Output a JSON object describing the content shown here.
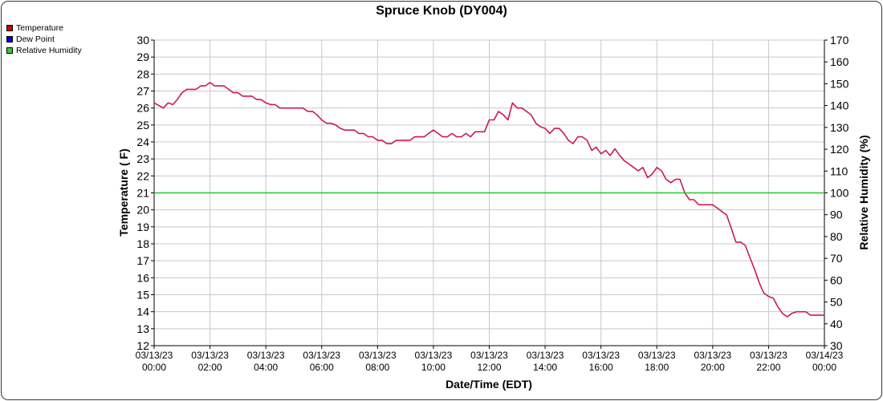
{
  "chart_data": {
    "type": "line",
    "title": "Spruce Knob (DY004)",
    "xlabel": "Date/Time (EDT)",
    "ylabel_left": "Temperature ( F)",
    "ylabel_right": "Relative Humidity (%)",
    "ylim_left": [
      12,
      30
    ],
    "ylim_right": [
      30,
      170
    ],
    "yticks_left": [
      "12",
      "13",
      "14",
      "15",
      "16",
      "17",
      "18",
      "19",
      "20",
      "21",
      "22",
      "23",
      "24",
      "25",
      "26",
      "27",
      "28",
      "29",
      "30"
    ],
    "yticks_right": [
      "30",
      "40",
      "50",
      "60",
      "70",
      "80",
      "90",
      "100",
      "110",
      "120",
      "130",
      "140",
      "150",
      "160",
      "170"
    ],
    "xlim_hours": [
      0,
      24
    ],
    "xticks": [
      {
        "date": "03/13/23",
        "time": "00:00"
      },
      {
        "date": "03/13/23",
        "time": "02:00"
      },
      {
        "date": "03/13/23",
        "time": "04:00"
      },
      {
        "date": "03/13/23",
        "time": "06:00"
      },
      {
        "date": "03/13/23",
        "time": "08:00"
      },
      {
        "date": "03/13/23",
        "time": "10:00"
      },
      {
        "date": "03/13/23",
        "time": "12:00"
      },
      {
        "date": "03/13/23",
        "time": "14:00"
      },
      {
        "date": "03/13/23",
        "time": "16:00"
      },
      {
        "date": "03/13/23",
        "time": "18:00"
      },
      {
        "date": "03/13/23",
        "time": "20:00"
      },
      {
        "date": "03/13/23",
        "time": "22:00"
      },
      {
        "date": "03/14/23",
        "time": "00:00"
      }
    ],
    "grid": true,
    "legend_position": "top-left",
    "series": [
      {
        "name": "Temperature",
        "axis": "left",
        "color": "#cc0000",
        "line_color": "#cc1a4d",
        "x_hours": [
          0,
          0.33,
          0.5,
          0.67,
          0.83,
          1,
          1.17,
          1.33,
          1.5,
          1.67,
          1.83,
          2,
          2.17,
          2.33,
          2.5,
          2.67,
          2.83,
          3,
          3.17,
          3.33,
          3.5,
          3.67,
          3.83,
          4,
          4.17,
          4.33,
          4.5,
          4.67,
          4.83,
          5,
          5.17,
          5.33,
          5.5,
          5.67,
          5.83,
          6,
          6.17,
          6.33,
          6.5,
          6.67,
          6.83,
          7,
          7.17,
          7.33,
          7.5,
          7.67,
          7.83,
          8,
          8.17,
          8.33,
          8.5,
          8.67,
          8.83,
          9,
          9.17,
          9.33,
          9.5,
          9.67,
          9.83,
          10,
          10.17,
          10.33,
          10.5,
          10.67,
          10.83,
          11,
          11.17,
          11.33,
          11.5,
          11.67,
          11.83,
          12,
          12.17,
          12.33,
          12.5,
          12.67,
          12.83,
          13,
          13.17,
          13.33,
          13.5,
          13.67,
          13.83,
          14,
          14.17,
          14.33,
          14.5,
          14.67,
          14.83,
          15,
          15.17,
          15.33,
          15.5,
          15.67,
          15.83,
          16,
          16.17,
          16.33,
          16.5,
          16.67,
          16.83,
          17,
          17.17,
          17.33,
          17.5,
          17.67,
          17.83,
          18,
          18.17,
          18.33,
          18.5,
          18.67,
          18.83,
          19,
          19.17,
          19.33,
          19.5,
          19.67,
          19.83,
          20,
          20.17,
          20.33,
          20.5,
          20.67,
          20.83,
          21,
          21.17,
          21.33,
          21.5,
          21.67,
          21.83,
          22,
          22.17,
          22.33,
          22.5,
          22.67,
          22.83,
          23,
          23.17,
          23.33,
          23.5,
          23.67,
          23.83,
          24
        ],
        "values": [
          26.3,
          26.0,
          26.3,
          26.2,
          26.5,
          26.9,
          27.1,
          27.1,
          27.1,
          27.3,
          27.3,
          27.5,
          27.3,
          27.3,
          27.3,
          27.1,
          26.9,
          26.9,
          26.7,
          26.7,
          26.7,
          26.5,
          26.5,
          26.3,
          26.2,
          26.2,
          26.0,
          26.0,
          26.0,
          26.0,
          26.0,
          26.0,
          25.8,
          25.8,
          25.6,
          25.3,
          25.1,
          25.1,
          25.0,
          24.8,
          24.7,
          24.7,
          24.7,
          24.5,
          24.5,
          24.3,
          24.3,
          24.1,
          24.1,
          23.9,
          23.9,
          24.1,
          24.1,
          24.1,
          24.1,
          24.3,
          24.3,
          24.3,
          24.5,
          24.7,
          24.5,
          24.3,
          24.3,
          24.5,
          24.3,
          24.3,
          24.5,
          24.3,
          24.6,
          24.6,
          24.6,
          25.3,
          25.3,
          25.8,
          25.6,
          25.3,
          26.3,
          26.0,
          26.0,
          25.8,
          25.6,
          25.1,
          24.9,
          24.8,
          24.5,
          24.8,
          24.8,
          24.5,
          24.1,
          23.9,
          24.3,
          24.3,
          24.1,
          23.5,
          23.7,
          23.3,
          23.5,
          23.2,
          23.6,
          23.2,
          22.9,
          22.7,
          22.5,
          22.3,
          22.5,
          21.9,
          22.1,
          22.5,
          22.3,
          21.8,
          21.6,
          21.8,
          21.8,
          21.0,
          20.6,
          20.6,
          20.3,
          20.3,
          20.3,
          20.3,
          20.1,
          19.9,
          19.7,
          18.9,
          18.1,
          18.1,
          17.9,
          17.2,
          16.5,
          15.7,
          15.1,
          14.9,
          14.8,
          14.3,
          13.9,
          13.7,
          13.9,
          14.0,
          14.0,
          14.0,
          13.8,
          13.8,
          13.8,
          13.8
        ]
      },
      {
        "name": "Dew Point",
        "axis": "left",
        "color": "#0000cc",
        "values": []
      },
      {
        "name": "Relative Humidity",
        "axis": "right",
        "color": "#33cc33",
        "line_color": "#22cc22",
        "x_hours": [
          0,
          24
        ],
        "values": [
          100,
          100
        ]
      }
    ]
  }
}
